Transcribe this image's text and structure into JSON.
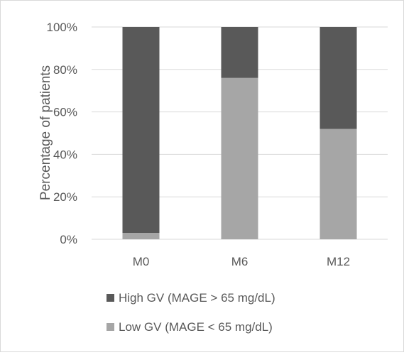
{
  "chart_data": {
    "type": "bar",
    "stacked": true,
    "percent_stacked": true,
    "categories": [
      "M0",
      "M6",
      "M12"
    ],
    "series": [
      {
        "name": "Low GV (MAGE < 65 mg/dL)",
        "values": [
          3,
          76,
          52
        ],
        "color": "#a6a6a6"
      },
      {
        "name": "High GV (MAGE > 65 mg/dL)",
        "values": [
          97,
          24,
          48
        ],
        "color": "#595959"
      }
    ],
    "legend_order": [
      1,
      0
    ],
    "title": "",
    "xlabel": "",
    "ylabel": "Percentage of patients",
    "ylim": [
      0,
      100
    ],
    "yticks": [
      0,
      20,
      40,
      60,
      80,
      100
    ],
    "ytick_labels": [
      "0%",
      "20%",
      "40%",
      "60%",
      "80%",
      "100%"
    ],
    "grid": true,
    "legend_position": "bottom",
    "colors": {
      "gridline": "#d9d9d9",
      "text": "#595959",
      "border": "#d9d9d9"
    }
  }
}
